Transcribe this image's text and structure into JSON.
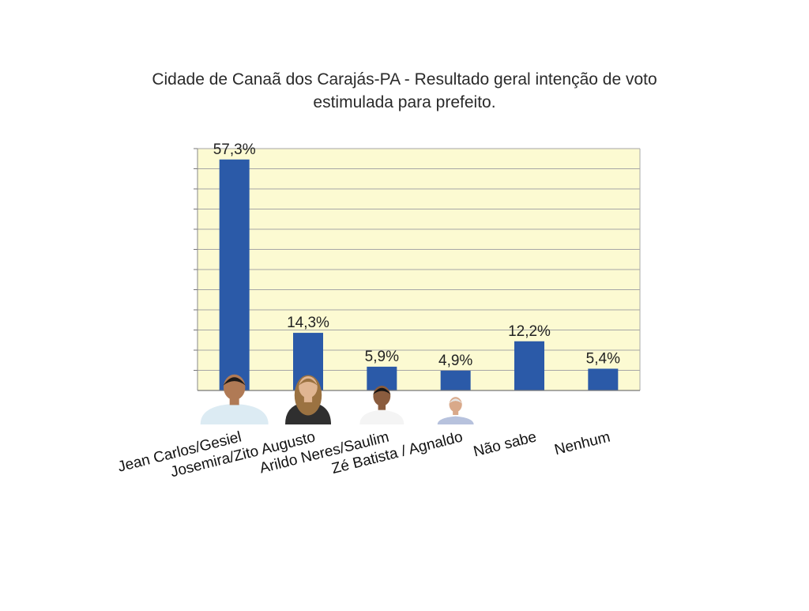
{
  "title": {
    "line1": "Cidade de Canaã dos Carajás-PA - Resultado geral intenção de voto",
    "line2": "estimulada para prefeito."
  },
  "colors": {
    "plot_background": "#fcfad2",
    "bar": "#2b5aa8",
    "gridline": "#a6a6a6"
  },
  "chart_data": {
    "type": "bar",
    "title": "Cidade de Canaã dos Carajás-PA - Resultado geral intenção de voto estimulada para prefeito.",
    "categories": [
      "Jean Carlos/Gesiel",
      "Josemira/Zito Augusto",
      "Arildo Neres/Saulim",
      "Zé Batista / Agnaldo",
      "Não sabe",
      "Nenhum"
    ],
    "values": [
      57.3,
      14.3,
      5.9,
      4.9,
      12.2,
      5.4
    ],
    "data_labels": [
      "57,3%",
      "14,3%",
      "5,9%",
      "4,9%",
      "12,2%",
      "5,4%"
    ],
    "candidate_photos": [
      "Jean Carlos",
      "Josemira",
      "Arildo Neres",
      "Zé Batista",
      null,
      null
    ],
    "ylim": [
      0,
      60
    ],
    "grid": true,
    "legend": "none",
    "xlabel": "",
    "ylabel": ""
  }
}
